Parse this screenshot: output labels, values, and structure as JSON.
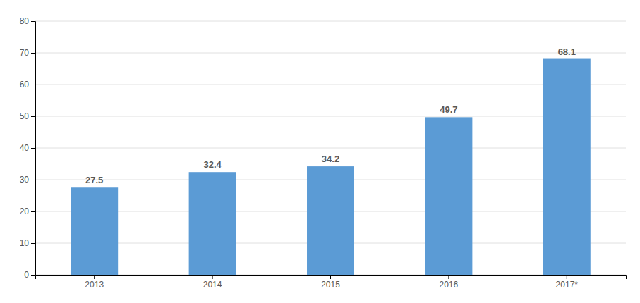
{
  "chart_data": {
    "type": "bar",
    "categories": [
      "2013",
      "2014",
      "2015",
      "2016",
      "2017*"
    ],
    "values": [
      27.5,
      32.4,
      34.2,
      49.7,
      68.1
    ],
    "color": "#5b9bd5",
    "ylim": [
      0,
      80
    ],
    "yticks": [
      0,
      10,
      20,
      30,
      40,
      50,
      60,
      70,
      80
    ],
    "grid": true,
    "data_labels": true
  }
}
